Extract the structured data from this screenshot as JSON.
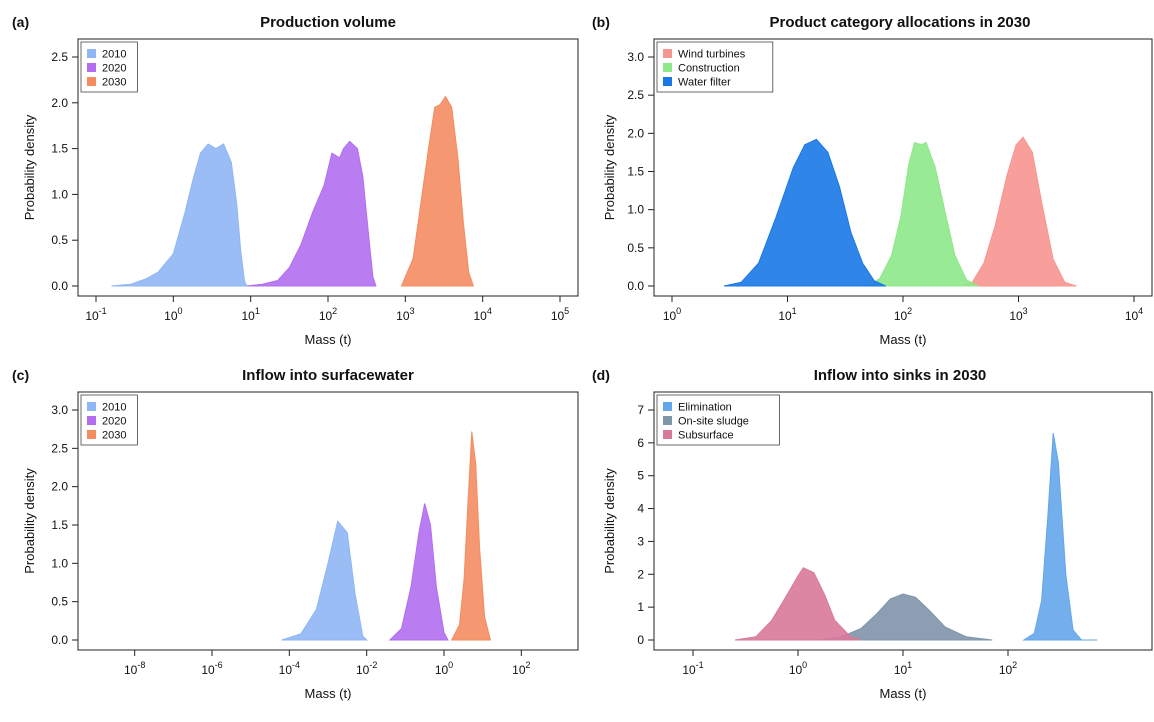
{
  "chart_data": [
    {
      "panel_label": "(a)",
      "type": "area",
      "title": "Production volume",
      "xlabel": "Mass (t)",
      "ylabel": "Probability density",
      "x_scale": "log10",
      "xlim": [
        -1,
        5
      ],
      "ylim": [
        0,
        2.5
      ],
      "x_ticks": [
        -1,
        0,
        1,
        2,
        3,
        4,
        5
      ],
      "y_ticks": [
        "0.0",
        "0.5",
        "1.0",
        "1.5",
        "2.0",
        "2.5"
      ],
      "legend": {
        "position": "top-left",
        "entries": [
          "2010",
          "2020",
          "2030"
        ]
      },
      "series": [
        {
          "name": "2010",
          "color": "#8fb6f5",
          "points": [
            [
              -0.8,
              0
            ],
            [
              -0.55,
              0.02
            ],
            [
              -0.35,
              0.08
            ],
            [
              -0.2,
              0.15
            ],
            [
              0.0,
              0.35
            ],
            [
              0.15,
              0.8
            ],
            [
              0.25,
              1.15
            ],
            [
              0.35,
              1.45
            ],
            [
              0.45,
              1.55
            ],
            [
              0.55,
              1.5
            ],
            [
              0.65,
              1.55
            ],
            [
              0.75,
              1.35
            ],
            [
              0.82,
              0.9
            ],
            [
              0.87,
              0.4
            ],
            [
              0.92,
              0.05
            ],
            [
              0.95,
              0
            ]
          ]
        },
        {
          "name": "2020",
          "color": "#b26ef0",
          "points": [
            [
              0.95,
              0
            ],
            [
              1.15,
              0.02
            ],
            [
              1.35,
              0.06
            ],
            [
              1.5,
              0.2
            ],
            [
              1.65,
              0.45
            ],
            [
              1.8,
              0.8
            ],
            [
              1.95,
              1.1
            ],
            [
              2.05,
              1.45
            ],
            [
              2.15,
              1.4
            ],
            [
              2.2,
              1.5
            ],
            [
              2.28,
              1.58
            ],
            [
              2.38,
              1.5
            ],
            [
              2.45,
              1.2
            ],
            [
              2.52,
              0.6
            ],
            [
              2.58,
              0.1
            ],
            [
              2.62,
              0
            ]
          ]
        },
        {
          "name": "2030",
          "color": "#f48c60",
          "points": [
            [
              2.95,
              0
            ],
            [
              3.1,
              0.3
            ],
            [
              3.2,
              0.9
            ],
            [
              3.3,
              1.5
            ],
            [
              3.38,
              1.95
            ],
            [
              3.45,
              1.98
            ],
            [
              3.52,
              2.07
            ],
            [
              3.6,
              1.95
            ],
            [
              3.68,
              1.4
            ],
            [
              3.75,
              0.7
            ],
            [
              3.82,
              0.15
            ],
            [
              3.88,
              0
            ]
          ]
        }
      ]
    },
    {
      "panel_label": "(b)",
      "type": "area",
      "title": "Product category allocations in 2030",
      "xlabel": "Mass (t)",
      "ylabel": "Probability density",
      "x_scale": "log10",
      "xlim": [
        0,
        4
      ],
      "ylim": [
        0,
        3.0
      ],
      "x_ticks": [
        0,
        1,
        2,
        3,
        4
      ],
      "y_ticks": [
        "0.0",
        "0.5",
        "1.0",
        "1.5",
        "2.0",
        "2.5",
        "3.0"
      ],
      "legend": {
        "position": "top-left",
        "entries": [
          "Wind turbines",
          "Construction",
          "Water filter"
        ]
      },
      "series": [
        {
          "name": "Wind turbines",
          "color": "#f79590",
          "points": [
            [
              2.5,
              0
            ],
            [
              2.6,
              0.05
            ],
            [
              2.7,
              0.3
            ],
            [
              2.8,
              0.8
            ],
            [
              2.9,
              1.45
            ],
            [
              2.98,
              1.85
            ],
            [
              3.04,
              1.95
            ],
            [
              3.12,
              1.75
            ],
            [
              3.2,
              1.1
            ],
            [
              3.3,
              0.35
            ],
            [
              3.4,
              0.05
            ],
            [
              3.5,
              0
            ]
          ]
        },
        {
          "name": "Construction",
          "color": "#8ee889",
          "points": [
            [
              1.7,
              0
            ],
            [
              1.8,
              0.1
            ],
            [
              1.9,
              0.4
            ],
            [
              1.98,
              0.9
            ],
            [
              2.05,
              1.6
            ],
            [
              2.1,
              1.88
            ],
            [
              2.16,
              1.85
            ],
            [
              2.2,
              1.88
            ],
            [
              2.28,
              1.55
            ],
            [
              2.36,
              1.0
            ],
            [
              2.45,
              0.4
            ],
            [
              2.55,
              0.08
            ],
            [
              2.65,
              0
            ]
          ]
        },
        {
          "name": "Water filter",
          "color": "#1a78e6",
          "points": [
            [
              0.45,
              0
            ],
            [
              0.6,
              0.05
            ],
            [
              0.75,
              0.3
            ],
            [
              0.9,
              0.9
            ],
            [
              1.05,
              1.55
            ],
            [
              1.15,
              1.85
            ],
            [
              1.25,
              1.92
            ],
            [
              1.35,
              1.75
            ],
            [
              1.45,
              1.3
            ],
            [
              1.55,
              0.7
            ],
            [
              1.65,
              0.3
            ],
            [
              1.75,
              0.07
            ],
            [
              1.85,
              0
            ]
          ]
        }
      ]
    },
    {
      "panel_label": "(c)",
      "type": "area",
      "title": "Inflow into surfacewater",
      "xlabel": "Mass (t)",
      "ylabel": "Probability density",
      "x_scale": "log10",
      "xlim": [
        -9,
        3
      ],
      "ylim": [
        0,
        3.0
      ],
      "x_ticks": [
        -8,
        -6,
        -4,
        -2,
        0,
        2
      ],
      "y_ticks": [
        "0.0",
        "0.5",
        "1.0",
        "1.5",
        "2.0",
        "2.5",
        "3.0"
      ],
      "legend": {
        "position": "top-left",
        "entries": [
          "2010",
          "2020",
          "2030"
        ]
      },
      "series": [
        {
          "name": "2010",
          "color": "#8fb6f5",
          "points": [
            [
              -4.2,
              0
            ],
            [
              -3.7,
              0.08
            ],
            [
              -3.3,
              0.4
            ],
            [
              -3.0,
              1.0
            ],
            [
              -2.75,
              1.55
            ],
            [
              -2.5,
              1.4
            ],
            [
              -2.3,
              0.6
            ],
            [
              -2.1,
              0.05
            ],
            [
              -2.0,
              0
            ]
          ]
        },
        {
          "name": "2020",
          "color": "#b26ef0",
          "points": [
            [
              -1.4,
              0
            ],
            [
              -1.1,
              0.15
            ],
            [
              -0.85,
              0.7
            ],
            [
              -0.65,
              1.4
            ],
            [
              -0.5,
              1.78
            ],
            [
              -0.35,
              1.5
            ],
            [
              -0.2,
              0.7
            ],
            [
              0.0,
              0.1
            ],
            [
              0.1,
              0
            ]
          ]
        },
        {
          "name": "2030",
          "color": "#f48c60",
          "points": [
            [
              0.2,
              0
            ],
            [
              0.4,
              0.2
            ],
            [
              0.52,
              0.8
            ],
            [
              0.62,
              1.8
            ],
            [
              0.72,
              2.72
            ],
            [
              0.82,
              2.3
            ],
            [
              0.92,
              1.2
            ],
            [
              1.05,
              0.3
            ],
            [
              1.2,
              0
            ]
          ]
        }
      ]
    },
    {
      "panel_label": "(d)",
      "type": "area",
      "title": "Inflow into sinks in 2030",
      "xlabel": "Mass (t)",
      "ylabel": "Probability density",
      "x_scale": "log10",
      "xlim": [
        -1.2,
        3.2
      ],
      "ylim": [
        0,
        7
      ],
      "x_ticks": [
        -1,
        0,
        1,
        2
      ],
      "y_ticks": [
        "0",
        "1",
        "2",
        "3",
        "4",
        "5",
        "6",
        "7"
      ],
      "legend": {
        "position": "top-left",
        "entries": [
          "Elimination",
          "On-site sludge",
          "Subsurface"
        ]
      },
      "series": [
        {
          "name": "On-site sludge",
          "color": "#7f95aa",
          "points": [
            [
              0.2,
              0
            ],
            [
              0.4,
              0.08
            ],
            [
              0.6,
              0.35
            ],
            [
              0.75,
              0.8
            ],
            [
              0.88,
              1.25
            ],
            [
              1.0,
              1.4
            ],
            [
              1.12,
              1.3
            ],
            [
              1.25,
              0.9
            ],
            [
              1.4,
              0.4
            ],
            [
              1.6,
              0.1
            ],
            [
              1.85,
              0
            ]
          ]
        },
        {
          "name": "Subsurface",
          "color": "#d8799a",
          "points": [
            [
              -0.6,
              0
            ],
            [
              -0.4,
              0.1
            ],
            [
              -0.25,
              0.6
            ],
            [
              -0.1,
              1.4
            ],
            [
              0.0,
              1.95
            ],
            [
              0.05,
              2.2
            ],
            [
              0.15,
              2.05
            ],
            [
              0.25,
              1.4
            ],
            [
              0.35,
              0.6
            ],
            [
              0.5,
              0.1
            ],
            [
              0.6,
              0
            ]
          ]
        },
        {
          "name": "Elimination",
          "color": "#64a6ea",
          "points": [
            [
              2.15,
              0
            ],
            [
              2.25,
              0.2
            ],
            [
              2.32,
              1.2
            ],
            [
              2.38,
              3.8
            ],
            [
              2.43,
              6.3
            ],
            [
              2.48,
              5.4
            ],
            [
              2.55,
              2.0
            ],
            [
              2.62,
              0.3
            ],
            [
              2.7,
              0
            ],
            [
              2.85,
              0
            ]
          ]
        }
      ]
    }
  ]
}
